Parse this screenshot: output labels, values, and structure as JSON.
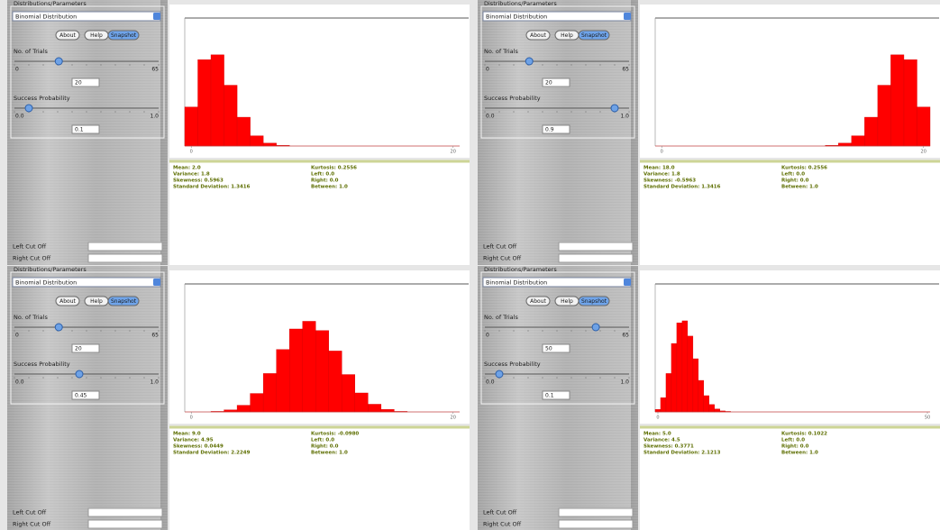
{
  "panels": [
    {
      "group_title": "Distributions/Parameters",
      "distribution": "Binomial Distribution",
      "buttons": [
        "About",
        "Help",
        "Snapshot"
      ],
      "trials": {
        "label": "No. of Trials",
        "min": 0,
        "max": 65,
        "value": 20
      },
      "probability": {
        "label": "Success Probability",
        "min": {
          "value": 0,
          "label": "0.0"
        },
        "max": {
          "value": 1,
          "label": "1.0"
        },
        "value": 0.1
      },
      "left_cutoff": "Left Cut Off",
      "right_cutoff": "Right Cut Off",
      "stats_left": [
        "Mean: 2.0",
        "Variance: 1.8",
        "Skewness: 0.5963",
        "Standard Deviation: 1.3416"
      ],
      "stats_right": [
        "Kurtosis: 0.2556",
        "Left: 0.0",
        "Right: 0.0",
        "Between: 1.0"
      ]
    },
    {
      "group_title": "Distributions/Parameters",
      "distribution": "Binomial Distribution",
      "buttons": [
        "About",
        "Help",
        "Snapshot"
      ],
      "trials": {
        "label": "No. of Trials",
        "min": 0,
        "max": 65,
        "value": 20
      },
      "probability": {
        "label": "Success Probability",
        "min": {
          "value": 0,
          "label": "0.0"
        },
        "max": {
          "value": 1,
          "label": "1.0"
        },
        "value": 0.9
      },
      "left_cutoff": "Left Cut Off",
      "right_cutoff": "Right Cut Off",
      "stats_left": [
        "Mean: 18.0",
        "Variance: 1.8",
        "Skewness: -0.5963",
        "Standard Deviation: 1.3416"
      ],
      "stats_right": [
        "Kurtosis: 0.2556",
        "Left: 0.0",
        "Right: 0.0",
        "Between: 1.0"
      ]
    },
    {
      "group_title": "Distributions/Parameters",
      "distribution": "Binomial Distribution",
      "buttons": [
        "About",
        "Help",
        "Snapshot"
      ],
      "trials": {
        "label": "No. of Trials",
        "min": 0,
        "max": 65,
        "value": 20
      },
      "probability": {
        "label": "Success Probability",
        "min": {
          "value": 0,
          "label": "0.0"
        },
        "max": {
          "value": 1,
          "label": "1.0"
        },
        "value": 0.45
      },
      "left_cutoff": "Left Cut Off",
      "right_cutoff": "Right Cut Off",
      "stats_left": [
        "Mean: 9.0",
        "Variance: 4.95",
        "Skewness: 0.0449",
        "Standard Deviation: 2.2249"
      ],
      "stats_right": [
        "Kurtosis: -0.0980",
        "Left: 0.0",
        "Right: 0.0",
        "Between: 1.0"
      ]
    },
    {
      "group_title": "Distributions/Parameters",
      "distribution": "Binomial Distribution",
      "buttons": [
        "About",
        "Help",
        "Snapshot"
      ],
      "trials": {
        "label": "No. of Trials",
        "min": 0,
        "max": 65,
        "value": 50
      },
      "probability": {
        "label": "Success Probability",
        "min": {
          "value": 0,
          "label": "0.0"
        },
        "max": {
          "value": 1,
          "label": "1.0"
        },
        "value": 0.1
      },
      "left_cutoff": "Left Cut Off",
      "right_cutoff": "Right Cut Off",
      "stats_left": [
        "Mean: 5.0",
        "Variance: 4.5",
        "Skewness: 0.3771",
        "Standard Deviation: 2.1213"
      ],
      "stats_right": [
        "Kurtosis: 0.1022",
        "Left: 0.0",
        "Right: 0.0",
        "Between: 1.0"
      ]
    }
  ],
  "chart_data": [
    {
      "type": "bar",
      "color": "#ff0000",
      "x": [
        0,
        1,
        2,
        3,
        4,
        5,
        6,
        7,
        8,
        9,
        10,
        11,
        12,
        13,
        14,
        15,
        16,
        17,
        18,
        19,
        20
      ],
      "values": [
        0.122,
        0.27,
        0.285,
        0.19,
        0.09,
        0.032,
        0.009,
        0.002,
        0,
        0,
        0,
        0,
        0,
        0,
        0,
        0,
        0,
        0,
        0,
        0,
        0
      ],
      "xlim": [
        -0.5,
        20.5
      ],
      "ylim": [
        0,
        0.4
      ],
      "xticks": [
        0,
        20
      ]
    },
    {
      "type": "bar",
      "color": "#ff0000",
      "x": [
        0,
        1,
        2,
        3,
        4,
        5,
        6,
        7,
        8,
        9,
        10,
        11,
        12,
        13,
        14,
        15,
        16,
        17,
        18,
        19,
        20
      ],
      "values": [
        0,
        0,
        0,
        0,
        0,
        0,
        0,
        0,
        0,
        0,
        0,
        0,
        0,
        0.002,
        0.009,
        0.032,
        0.09,
        0.19,
        0.285,
        0.27,
        0.122
      ],
      "xlim": [
        -0.5,
        20.5
      ],
      "ylim": [
        0,
        0.4
      ],
      "xticks": [
        0,
        20
      ]
    },
    {
      "type": "bar",
      "color": "#ff0000",
      "x": [
        0,
        1,
        2,
        3,
        4,
        5,
        6,
        7,
        8,
        9,
        10,
        11,
        12,
        13,
        14,
        15,
        16,
        17,
        18,
        19,
        20
      ],
      "values": [
        0,
        0,
        0.001,
        0.004,
        0.013,
        0.036,
        0.075,
        0.122,
        0.162,
        0.177,
        0.159,
        0.119,
        0.073,
        0.037,
        0.015,
        0.005,
        0.001,
        0,
        0,
        0,
        0
      ],
      "xlim": [
        -0.5,
        20.5
      ],
      "ylim": [
        0,
        0.25
      ],
      "xticks": [
        0,
        20
      ]
    },
    {
      "type": "bar",
      "color": "#ff0000",
      "x": [
        0,
        1,
        2,
        3,
        4,
        5,
        6,
        7,
        8,
        9,
        10,
        11,
        12,
        13,
        14,
        15,
        16,
        17,
        18,
        19,
        20,
        21,
        22,
        23,
        24,
        25,
        26,
        27,
        28,
        29,
        30,
        31,
        32,
        33,
        34,
        35,
        36,
        37,
        38,
        39,
        40,
        41,
        42,
        43,
        44,
        45,
        46,
        47,
        48,
        49,
        50
      ],
      "values": [
        0.005,
        0.029,
        0.078,
        0.139,
        0.181,
        0.185,
        0.154,
        0.108,
        0.064,
        0.033,
        0.015,
        0.006,
        0.002,
        0.001,
        0,
        0,
        0,
        0,
        0,
        0,
        0,
        0,
        0,
        0,
        0,
        0,
        0,
        0,
        0,
        0,
        0,
        0,
        0,
        0,
        0,
        0,
        0,
        0,
        0,
        0,
        0,
        0,
        0,
        0,
        0,
        0,
        0,
        0,
        0,
        0,
        0
      ],
      "xlim": [
        -0.5,
        50.5
      ],
      "ylim": [
        0,
        0.26
      ],
      "xticks": [
        0,
        50
      ]
    }
  ]
}
